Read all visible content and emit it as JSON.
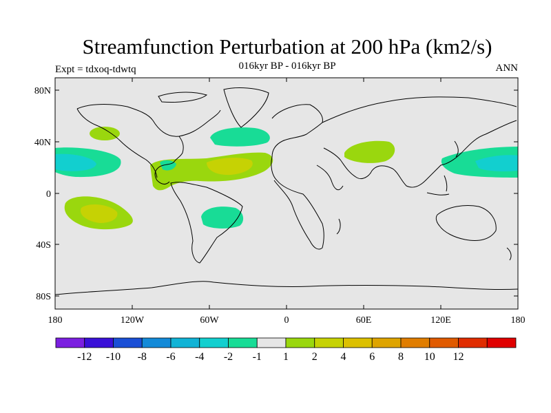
{
  "title": "Streamfunction Perturbation at 200 hPa (km2/s)",
  "subtitle": "016kyr BP - 016kyr BP",
  "left_label": "Expt = tdxoq-tdwtq",
  "right_label": "ANN",
  "lat_ticks": [
    "80N",
    "40N",
    "0",
    "40S",
    "80S"
  ],
  "lon_ticks": [
    "180",
    "120W",
    "60W",
    "0",
    "60E",
    "120E",
    "180"
  ],
  "colorbar": {
    "colors": [
      "#7b1fe0",
      "#3a10d8",
      "#1a4fd6",
      "#138ad8",
      "#10b3d6",
      "#12cfcf",
      "#18dc96",
      "#e6e6e6",
      "#9ad70e",
      "#c6d204",
      "#dcc000",
      "#dea400",
      "#e07d00",
      "#e05a00",
      "#e02c00",
      "#e00000"
    ],
    "labels": [
      "-12",
      "-10",
      "-8",
      "-6",
      "-4",
      "-2",
      "-1",
      "1",
      "2",
      "4",
      "6",
      "8",
      "10",
      "12"
    ]
  },
  "colors": {
    "background_map": "#e6e6e6",
    "neg1": "#18dc96",
    "neg2": "#12cfcf",
    "pos1": "#9ad70e",
    "pos2": "#c6d204",
    "coast": "#000000"
  },
  "map_features": {
    "positive_anomaly_regions": [
      "subtropical North Atlantic",
      "tropical America",
      "Middle East",
      "South Pacific",
      "North Pacific (small)"
    ],
    "negative_anomaly_regions": [
      "central North Pacific (east)",
      "western North Pacific",
      "North Atlantic",
      "South America"
    ]
  }
}
